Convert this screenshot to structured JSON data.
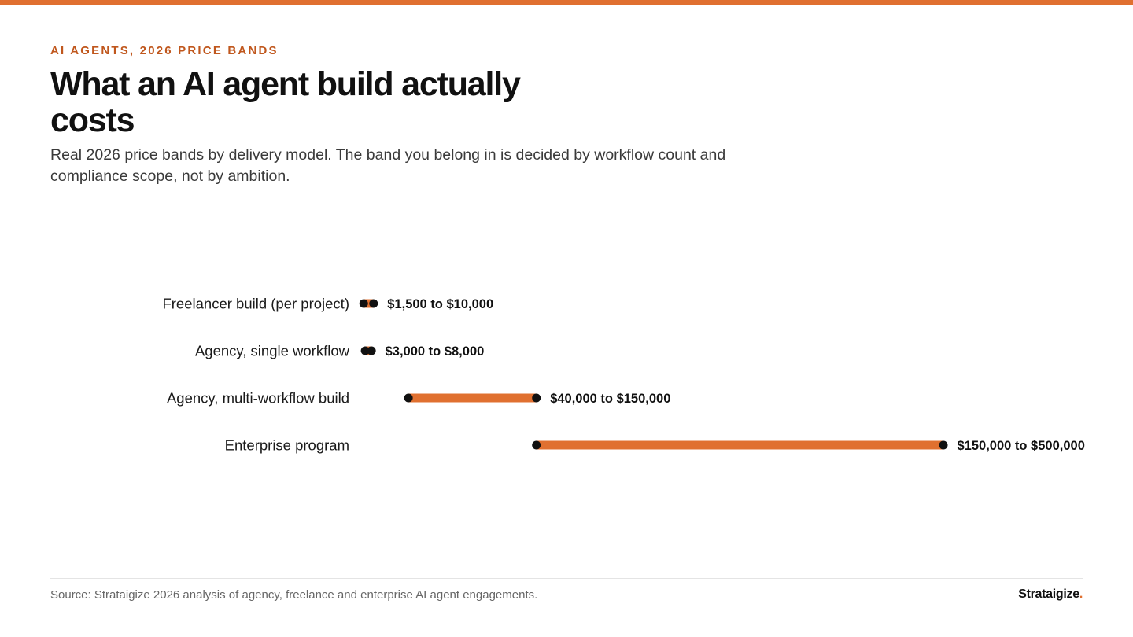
{
  "header": {
    "eyebrow": "AI AGENTS, 2026 PRICE BANDS",
    "title": "What an AI agent build actually costs",
    "subtitle": "Real 2026 price bands by delivery model. The band you belong in is decided by workflow count and compliance scope, not by ambition."
  },
  "footer": {
    "source": "Source: Strataigize 2026 analysis of agency, freelance and enterprise AI agent engagements.",
    "brand": "Strataigize",
    "brand_dot": "."
  },
  "colors": {
    "accent": "#e07030",
    "eyebrow": "#c0571d",
    "endpoint": "#111111"
  },
  "chart_data": {
    "type": "range",
    "categories": [
      "Freelancer build (per project)",
      "Agency, single workflow",
      "Agency, multi-workflow build",
      "Enterprise program"
    ],
    "ranges": [
      {
        "min": 1500,
        "max": 10000,
        "label": "$1,500 to $10,000"
      },
      {
        "min": 3000,
        "max": 8000,
        "label": "$3,000 to $8,000"
      },
      {
        "min": 40000,
        "max": 150000,
        "label": "$40,000 to $150,000"
      },
      {
        "min": 150000,
        "max": 500000,
        "label": "$150,000 to $500,000"
      }
    ],
    "xlim": [
      0,
      500000
    ],
    "grid": false,
    "legend": "none"
  }
}
